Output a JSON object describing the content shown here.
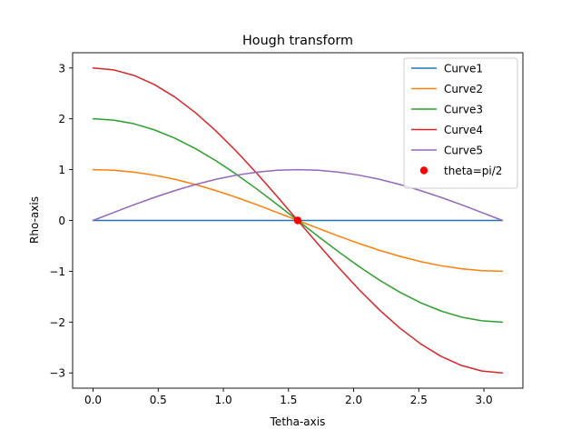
{
  "chart_data": {
    "type": "line",
    "title": "Hough transform",
    "xlabel": "Tetha-axis",
    "ylabel": "Rho-axis",
    "xlim": [
      -0.157,
      3.299
    ],
    "ylim": [
      -3.3,
      3.3
    ],
    "xticks": [
      0.0,
      0.5,
      1.0,
      1.5,
      2.0,
      2.5,
      3.0
    ],
    "xtick_labels": [
      "0.0",
      "0.5",
      "1.0",
      "1.5",
      "2.0",
      "2.5",
      "3.0"
    ],
    "yticks": [
      3,
      2,
      1,
      0,
      -1,
      -2,
      -3
    ],
    "ytick_labels": [
      "3",
      "2",
      "1",
      "0",
      "−1",
      "−2",
      "−3"
    ],
    "grid": false,
    "legend_position": "top-right",
    "x": [
      0.0,
      0.1571,
      0.3142,
      0.4712,
      0.6283,
      0.7854,
      0.9425,
      1.0996,
      1.2566,
      1.4137,
      1.5708,
      1.7279,
      1.885,
      2.042,
      2.1991,
      2.3562,
      2.5133,
      2.6704,
      2.8274,
      2.9845,
      3.1416
    ],
    "series": [
      {
        "name": "Curve1",
        "color": "#1f77b4",
        "values": [
          0,
          0,
          0,
          0,
          0,
          0,
          0,
          0,
          0,
          0,
          0,
          0,
          0,
          0,
          0,
          0,
          0,
          0,
          0,
          0,
          0
        ]
      },
      {
        "name": "Curve2",
        "color": "#ff7f0e",
        "values": [
          1.0,
          0.988,
          0.951,
          0.891,
          0.809,
          0.707,
          0.588,
          0.454,
          0.309,
          0.156,
          0.0,
          -0.156,
          -0.309,
          -0.454,
          -0.588,
          -0.707,
          -0.809,
          -0.891,
          -0.951,
          -0.988,
          -1.0
        ]
      },
      {
        "name": "Curve3",
        "color": "#2ca02c",
        "values": [
          2.0,
          1.975,
          1.902,
          1.782,
          1.618,
          1.414,
          1.176,
          0.908,
          0.618,
          0.313,
          0.0,
          -0.313,
          -0.618,
          -0.908,
          -1.176,
          -1.414,
          -1.618,
          -1.782,
          -1.902,
          -1.975,
          -2.0
        ]
      },
      {
        "name": "Curve4",
        "color": "#d62728",
        "values": [
          3.0,
          2.963,
          2.853,
          2.673,
          2.427,
          2.121,
          1.763,
          1.362,
          0.927,
          0.469,
          0.0,
          -0.469,
          -0.927,
          -1.362,
          -1.763,
          -2.121,
          -2.427,
          -2.673,
          -2.853,
          -2.963,
          -3.0
        ]
      },
      {
        "name": "Curve5",
        "color": "#9467bd",
        "values": [
          0.0,
          0.156,
          0.309,
          0.454,
          0.588,
          0.707,
          0.809,
          0.891,
          0.951,
          0.988,
          1.0,
          0.988,
          0.951,
          0.891,
          0.809,
          0.707,
          0.588,
          0.454,
          0.309,
          0.156,
          0.0
        ]
      }
    ],
    "scatter": {
      "name": "theta=pi/2",
      "color": "#ff0000",
      "points": [
        [
          1.5708,
          0
        ]
      ]
    }
  }
}
